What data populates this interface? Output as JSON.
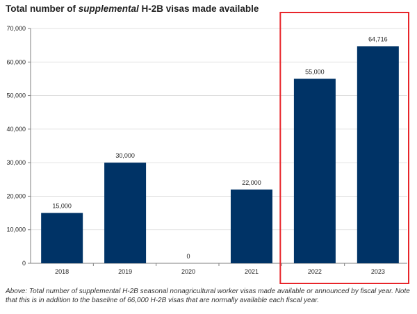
{
  "title": {
    "prefix": "Total number of ",
    "emphasis": "supplemental",
    "suffix": " H-2B visas made available"
  },
  "caption": "Above: Total number of supplemental H-2B seasonal nonagricultural worker visas made available or announced by fiscal year. Note that this is in addition to the baseline of 66,000 H-2B visas that are normally available each fiscal year.",
  "colors": {
    "bar": "#003366",
    "highlight_box": "#e8252a",
    "axis": "#7f7f7f",
    "grid": "#d9d9d9"
  },
  "chart_data": {
    "type": "bar",
    "categories": [
      "2018",
      "2019",
      "2020",
      "2021",
      "2022",
      "2023"
    ],
    "values": [
      15000,
      30000,
      0,
      22000,
      55000,
      64716
    ],
    "data_labels": [
      "15,000",
      "30,000",
      "0",
      "22,000",
      "55,000",
      "64,716"
    ],
    "yticks": [
      0,
      10000,
      20000,
      30000,
      40000,
      50000,
      60000,
      70000
    ],
    "ytick_labels": [
      "0",
      "10,000",
      "20,000",
      "30,000",
      "40,000",
      "50,000",
      "60,000",
      "70,000"
    ],
    "ylim": [
      0,
      70000
    ],
    "grid": true,
    "highlighted_categories": [
      "2022",
      "2023"
    ]
  }
}
